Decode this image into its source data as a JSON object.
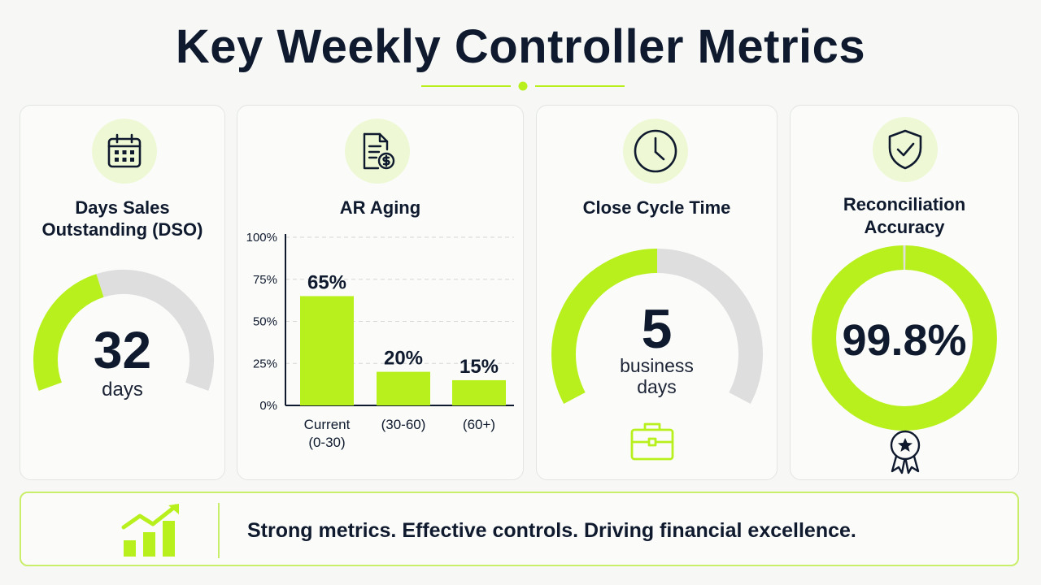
{
  "title": "Key Weekly Controller Metrics",
  "colors": {
    "accent": "#b8f01e",
    "track": "#dedede",
    "text": "#0f1a2e"
  },
  "cards": {
    "dso": {
      "icon": "calendar-icon",
      "title_line1": "Days Sales",
      "title_line2": "Outstanding (DSO)",
      "value": "32",
      "unit": "days",
      "gauge_fraction": 0.42
    },
    "ar_aging": {
      "icon": "invoice-dollar-icon",
      "title": "AR Aging"
    },
    "close_cycle": {
      "icon": "clock-icon",
      "title": "Close Cycle Time",
      "value": "5",
      "unit_line1": "business",
      "unit_line2": "days",
      "gauge_fraction": 0.5,
      "footer_icon": "briefcase-icon"
    },
    "reconciliation": {
      "icon": "shield-check-icon",
      "title_line1": "Reconciliation",
      "title_line2": "Accuracy",
      "value": "99.8%",
      "gauge_fraction": 0.998,
      "footer_icon": "award-ribbon-icon"
    }
  },
  "chart_data": {
    "type": "bar",
    "title": "AR Aging",
    "categories": [
      [
        "Current",
        "(0-30)"
      ],
      [
        "(30-60)"
      ],
      [
        "(60+)"
      ]
    ],
    "values": [
      65,
      20,
      15
    ],
    "data_labels": [
      "65%",
      "20%",
      "15%"
    ],
    "yticks": [
      "0%",
      "25%",
      "50%",
      "75%",
      "100%"
    ],
    "ylim": [
      0,
      100
    ],
    "grid": true
  },
  "footer": {
    "icon": "growth-chart-icon",
    "text": "Strong metrics. Effective controls. Driving financial excellence."
  }
}
